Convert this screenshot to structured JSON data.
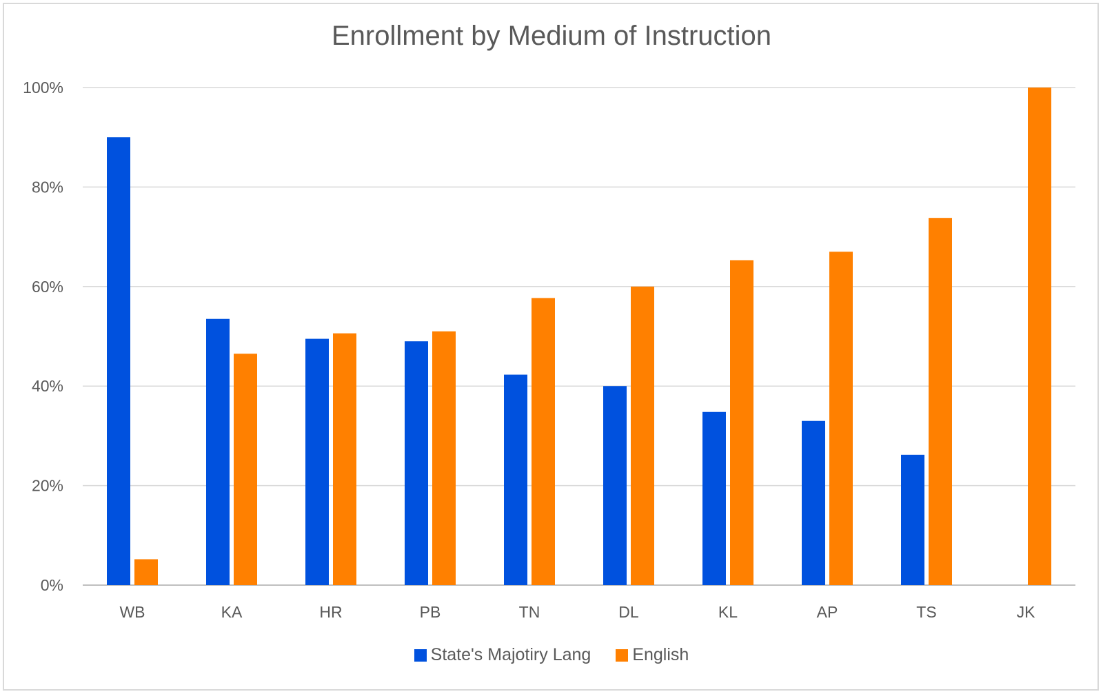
{
  "chart_data": {
    "type": "bar",
    "title": "Enrollment by Medium of Instruction",
    "xlabel": "",
    "ylabel": "",
    "categories": [
      "WB",
      "KA",
      "HR",
      "PB",
      "TN",
      "DL",
      "KL",
      "AP",
      "TS",
      "JK"
    ],
    "series": [
      {
        "name": "State's Majotiry Lang",
        "color": "#0051de",
        "values": [
          90,
          53.5,
          49.5,
          49,
          42.3,
          40,
          34.8,
          33,
          26.2,
          0
        ]
      },
      {
        "name": "English",
        "color": "#ff8000",
        "values": [
          5.2,
          46.5,
          50.6,
          51,
          57.7,
          60,
          65.3,
          67,
          73.8,
          100
        ]
      }
    ],
    "ylim": [
      0,
      100
    ],
    "yticks": [
      "0%",
      "20%",
      "40%",
      "60%",
      "80%",
      "100%"
    ],
    "grid": true,
    "legend_position": "bottom"
  }
}
